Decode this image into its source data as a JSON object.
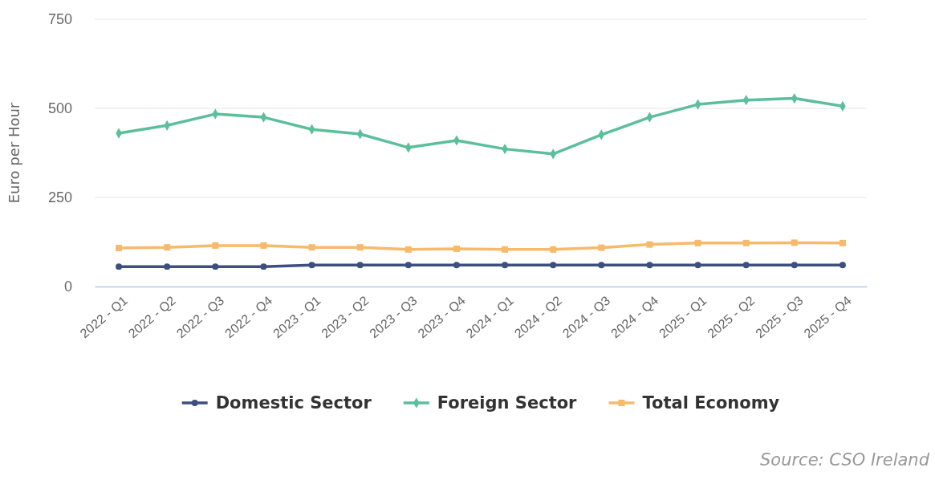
{
  "chart_data": {
    "type": "line",
    "ylabel": "Euro per Hour",
    "categories": [
      "2022 - Q1",
      "2022 - Q2",
      "2022 - Q3",
      "2022 - Q4",
      "2023 - Q1",
      "2023 - Q2",
      "2023 - Q3",
      "2023 - Q4",
      "2024 - Q1",
      "2024 - Q2",
      "2024 - Q3",
      "2024 - Q4",
      "2025 - Q1",
      "2025 - Q2",
      "2025 - Q3",
      "2025 - Q4"
    ],
    "series": [
      {
        "name": "Domestic Sector",
        "color": "#3d4f7f",
        "marker": "circle",
        "values": [
          56,
          56,
          56,
          56,
          60,
          60,
          60,
          60,
          60,
          60,
          60,
          60,
          60,
          60,
          60,
          60
        ]
      },
      {
        "name": "Foreign Sector",
        "color": "#5bbf9a",
        "marker": "diamond",
        "values": [
          430,
          452,
          484,
          475,
          441,
          428,
          390,
          410,
          386,
          372,
          426,
          475,
          511,
          523,
          528,
          506
        ]
      },
      {
        "name": "Total Economy",
        "color": "#f7b96a",
        "marker": "square",
        "values": [
          108,
          110,
          115,
          115,
          110,
          110,
          104,
          106,
          104,
          104,
          109,
          118,
          122,
          122,
          123,
          122
        ]
      }
    ],
    "ylim": [
      0,
      750
    ],
    "yticks": [
      0,
      250,
      500,
      750
    ],
    "grid": "y",
    "legend": "bottom",
    "annotations": [
      "Source: CSO Ireland"
    ]
  }
}
